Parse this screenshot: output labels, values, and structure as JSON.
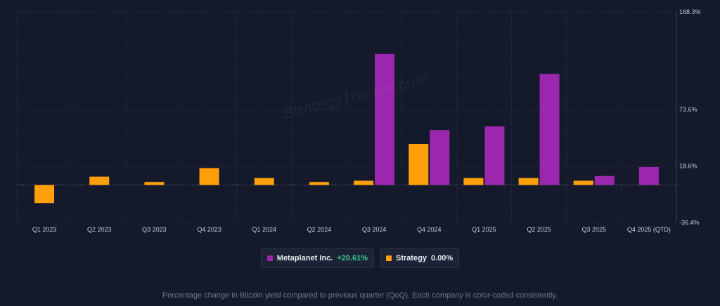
{
  "watermark": "StrategyTracker.com",
  "chart_data": {
    "type": "bar",
    "categories": [
      "Q1 2023",
      "Q2 2023",
      "Q3 2023",
      "Q4 2023",
      "Q1 2024",
      "Q2 2024",
      "Q3 2024",
      "Q4 2024",
      "Q1 2025",
      "Q2 2025",
      "Q3 2025",
      "Q4 2025 (QTD)"
    ],
    "series": [
      {
        "name": "Strategy",
        "color": "#ff9f0a",
        "values": [
          -17.5,
          8.2,
          3.0,
          16.5,
          6.8,
          3.0,
          4.2,
          40.0,
          6.8,
          6.8,
          4.2,
          null
        ]
      },
      {
        "name": "Metaplanet Inc.",
        "color": "#9b27af",
        "values": [
          null,
          null,
          null,
          null,
          null,
          null,
          127.5,
          53.5,
          57.0,
          108.0,
          8.8,
          17.6
        ]
      }
    ],
    "yaxis": {
      "position": "right",
      "ylim": [
        -36.4,
        168.3
      ],
      "ticks": [
        168.3,
        73.6,
        18.6,
        -36.4
      ],
      "tick_labels": [
        "168.3%",
        "73.6%",
        "18.6%",
        "-36.4%"
      ]
    },
    "grid": true,
    "legend": [
      {
        "name": "Metaplanet Inc.",
        "value": "+20.61%",
        "color": "#9b27af",
        "value_color": "#3ecf8e"
      },
      {
        "name": "Strategy",
        "value": "0.00%",
        "color": "#ff9f0a",
        "value_color": "#e7eaf0"
      }
    ],
    "caption": "Percentage change in Bitcoin yield compared to previous quarter (QoQ). Each company is color-coded consistently."
  }
}
